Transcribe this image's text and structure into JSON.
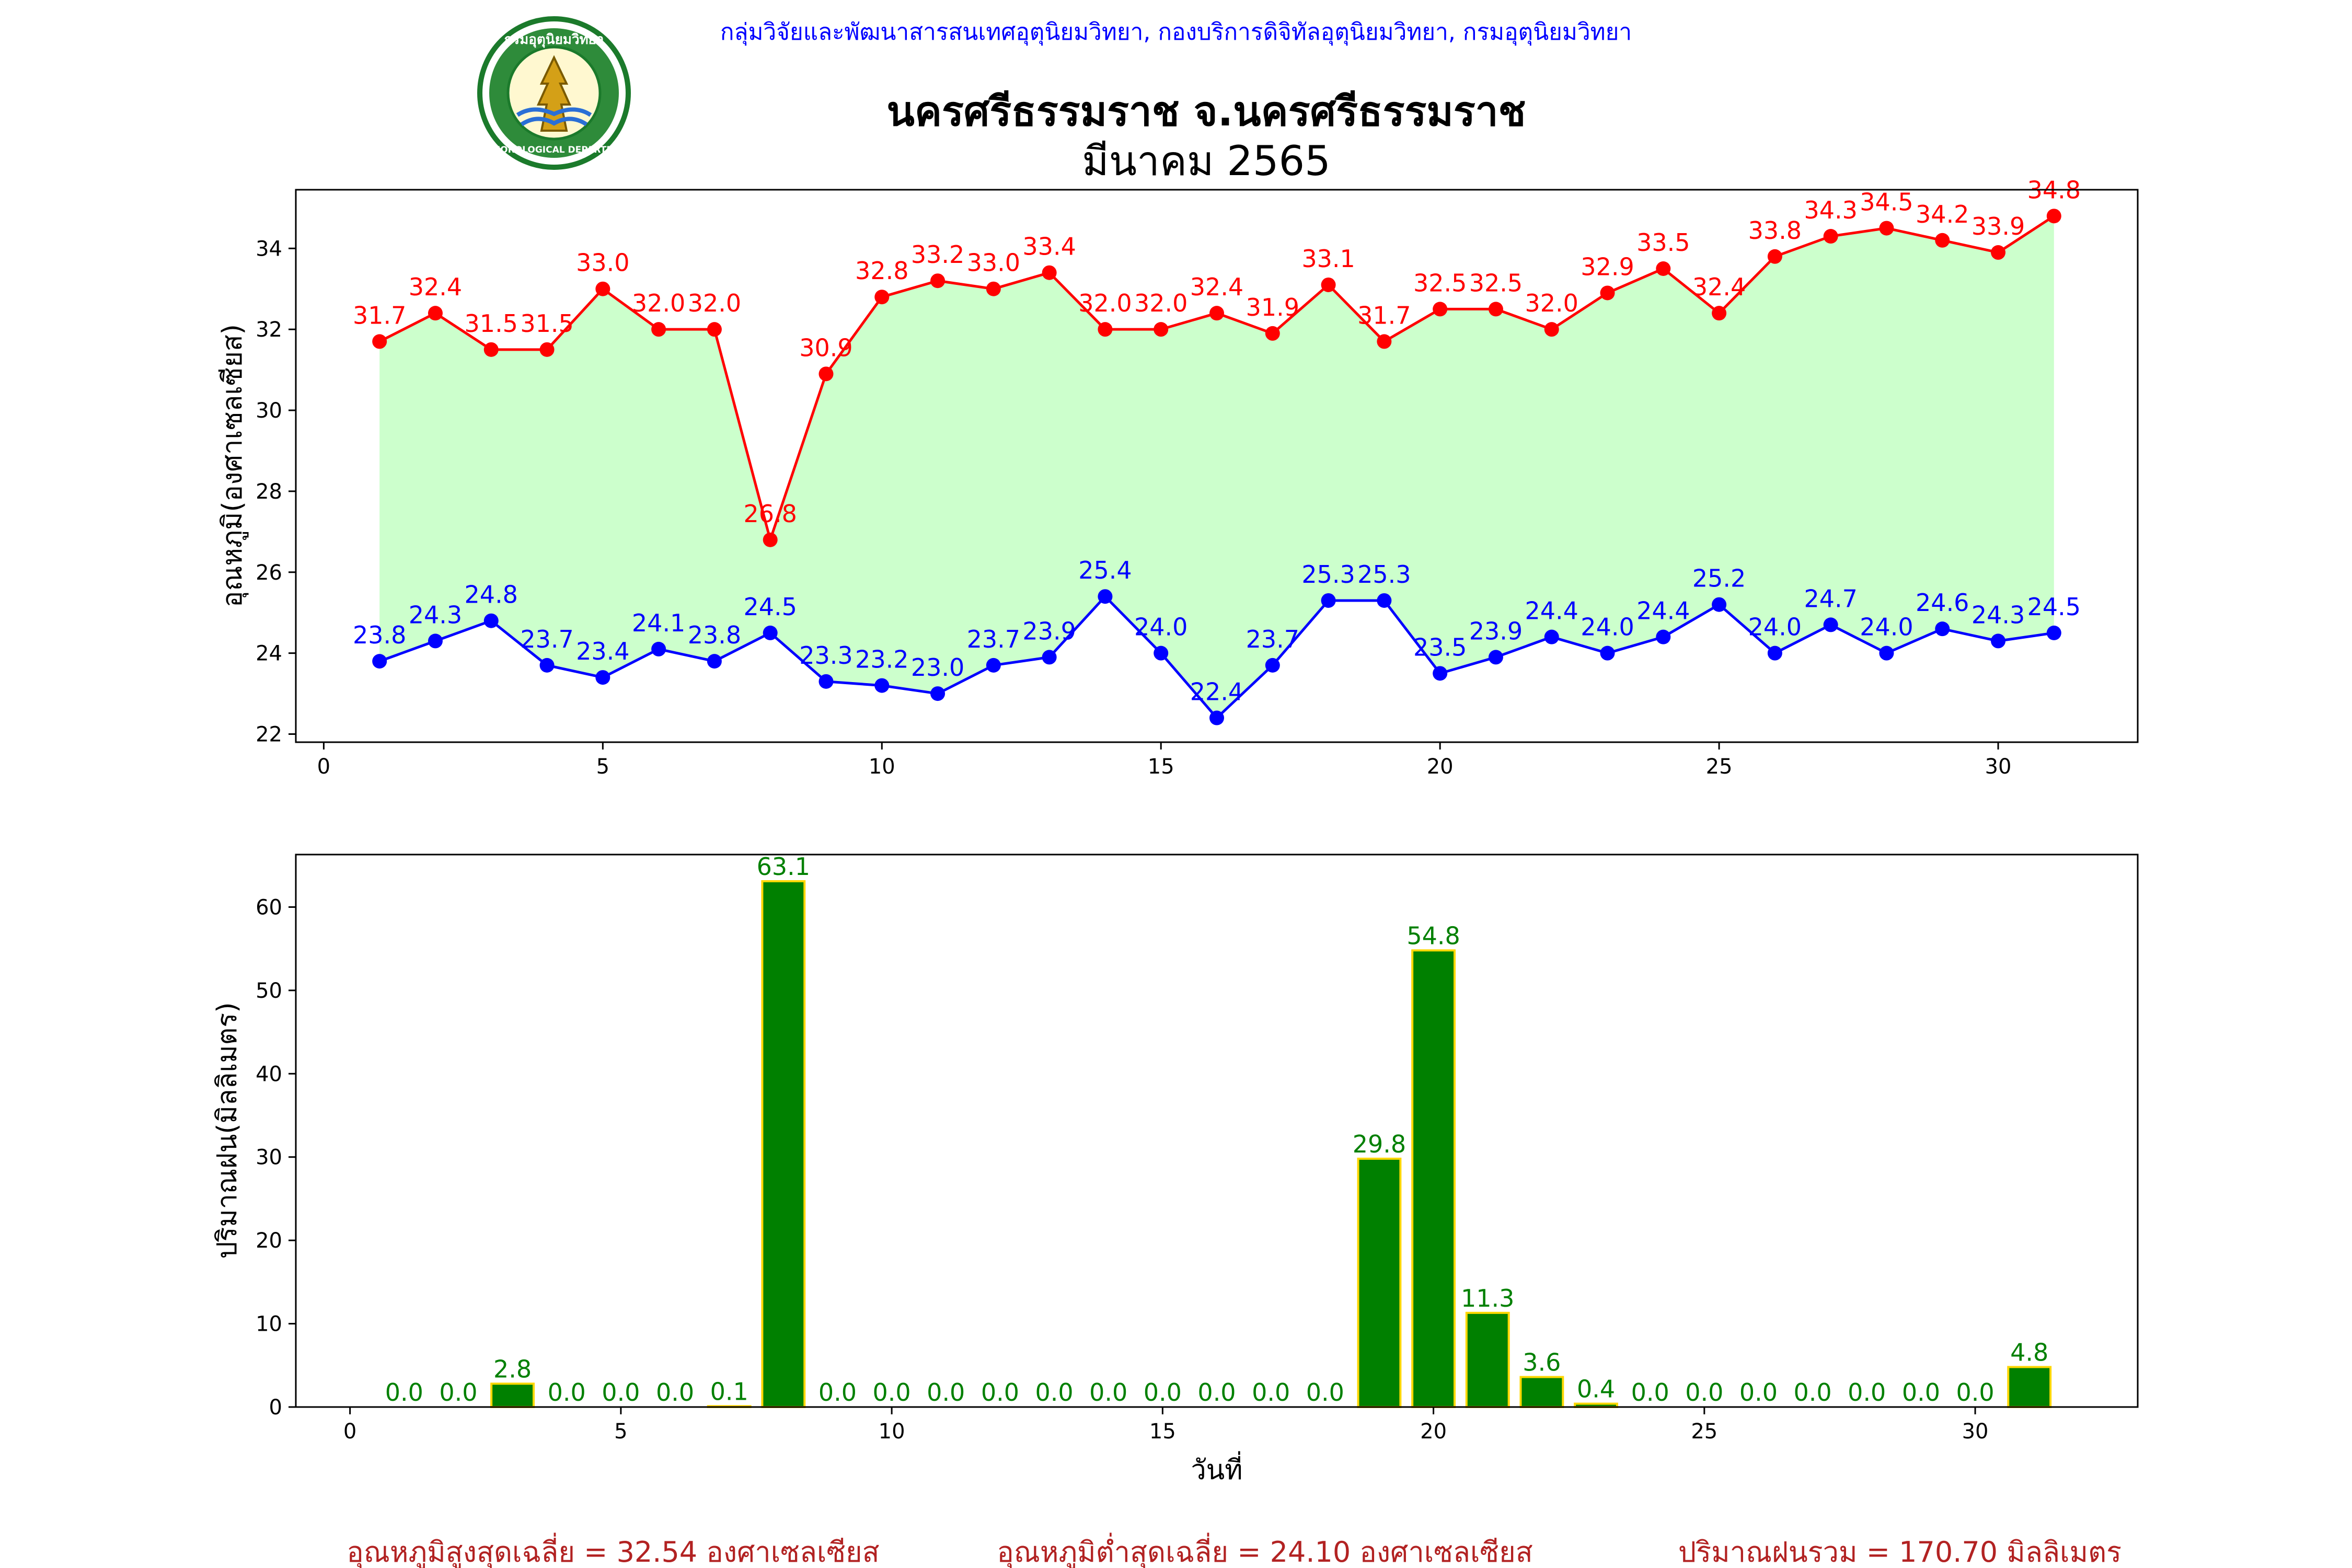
{
  "header": {
    "agency_line": "กลุ่มวิจัยและพัฒนาสารสนเทศอุตุนิยมวิทยา, กองบริการดิจิทัลอุตุนิยมวิทยา, กรมอุตุนิยมวิทยา",
    "station_title": "นครศรีธรรมราช จ.นครศรีธรรมราช",
    "month_title": "มีนาคม 2565",
    "logo": {
      "icon": "tmd-logo-icon",
      "ring_text_top": "กรมอุตุนิยมวิทยา",
      "ring_text_bottom": "METEOROLOGICAL DEPARTMENT"
    }
  },
  "colors": {
    "agency_text": "#0000ff",
    "max_line": "#ff0000",
    "min_line": "#0000ff",
    "band_fill": "#ccffcc",
    "bar_fill": "#008000",
    "bar_edge": "#ffd700",
    "rain_label": "#008000",
    "summary_text": "#b22222"
  },
  "chart_data": [
    {
      "type": "line",
      "ylabel": "อุณหภูมิ(องศาเซลเซียส)",
      "xlabel": "",
      "xlim": [
        -0.5,
        32.5
      ],
      "ylim": [
        21.8,
        35.45
      ],
      "xticks": [
        0,
        5,
        10,
        15,
        20,
        25,
        30
      ],
      "yticks": [
        22,
        24,
        26,
        28,
        30,
        32,
        34
      ],
      "grid": false,
      "fill_between_series": true,
      "x": [
        1,
        2,
        3,
        4,
        5,
        6,
        7,
        8,
        9,
        10,
        11,
        12,
        13,
        14,
        15,
        16,
        17,
        18,
        19,
        20,
        21,
        22,
        23,
        24,
        25,
        26,
        27,
        28,
        29,
        30,
        31
      ],
      "series": [
        {
          "key": "max",
          "values": [
            31.7,
            32.4,
            31.5,
            31.5,
            33.0,
            32.0,
            32.0,
            26.8,
            30.9,
            32.8,
            33.2,
            33.0,
            33.4,
            32.0,
            32.0,
            32.4,
            31.9,
            33.1,
            31.7,
            32.5,
            32.5,
            32.0,
            32.9,
            33.5,
            32.4,
            33.8,
            34.3,
            34.5,
            34.2,
            33.9,
            34.8
          ],
          "labels": [
            "31.7",
            "32.4",
            "31.5",
            "31.5",
            "33.0",
            "32.0",
            "32.0",
            "26.8",
            "30.9",
            "32.8",
            "33.2",
            "33.0",
            "33.4",
            "32.0",
            "32.0",
            "32.4",
            "31.9",
            "33.1",
            "31.7",
            "32.5",
            "32.5",
            "32.0",
            "32.9",
            "33.5",
            "32.4",
            "33.8",
            "34.3",
            "34.5",
            "34.2",
            "33.9",
            "34.8"
          ]
        },
        {
          "key": "min",
          "values": [
            23.8,
            24.3,
            24.8,
            23.7,
            23.4,
            24.1,
            23.8,
            24.5,
            23.3,
            23.2,
            23.0,
            23.7,
            23.9,
            25.4,
            24.0,
            22.4,
            23.7,
            25.3,
            25.3,
            23.5,
            23.9,
            24.4,
            24.0,
            24.4,
            25.2,
            24.0,
            24.7,
            24.0,
            24.6,
            24.3,
            24.5
          ],
          "labels": [
            "23.8",
            "24.3",
            "24.8",
            "23.7",
            "23.4",
            "24.1",
            "23.8",
            "24.5",
            "23.3",
            "23.2",
            "23.0",
            "23.7",
            "23.9",
            "25.4",
            "24.0",
            "22.4",
            "23.7",
            "25.3",
            "25.3",
            "23.5",
            "23.9",
            "24.4",
            "24.0",
            "24.4",
            "25.2",
            "24.0",
            "24.7",
            "24.0",
            "24.6",
            "24.3",
            "24.5"
          ]
        }
      ]
    },
    {
      "type": "bar",
      "ylabel": "ปริมาณฝน(มิลลิเมตร)",
      "xlabel": "วันที่",
      "xlim": [
        -1,
        33
      ],
      "ylim": [
        0,
        66.3
      ],
      "xticks": [
        0,
        5,
        10,
        15,
        20,
        25,
        30
      ],
      "yticks": [
        0,
        10,
        20,
        30,
        40,
        50,
        60
      ],
      "grid": false,
      "x": [
        1,
        2,
        3,
        4,
        5,
        6,
        7,
        8,
        9,
        10,
        11,
        12,
        13,
        14,
        15,
        16,
        17,
        18,
        19,
        20,
        21,
        22,
        23,
        24,
        25,
        26,
        27,
        28,
        29,
        30,
        31
      ],
      "values": [
        0.0,
        0.0,
        2.8,
        0.0,
        0.0,
        0.0,
        0.1,
        63.1,
        0.0,
        0.0,
        0.0,
        0.0,
        0.0,
        0.0,
        0.0,
        0.0,
        0.0,
        0.0,
        29.8,
        54.8,
        11.3,
        3.6,
        0.4,
        0.0,
        0.0,
        0.0,
        0.0,
        0.0,
        0.0,
        0.0,
        4.8
      ],
      "labels": [
        "0.0",
        "0.0",
        "2.8",
        "0.0",
        "0.0",
        "0.0",
        "0.1",
        "63.1",
        "0.0",
        "0.0",
        "0.0",
        "0.0",
        "0.0",
        "0.0",
        "0.0",
        "0.0",
        "0.0",
        "0.0",
        "29.8",
        "54.8",
        "11.3",
        "3.6",
        "0.4",
        "0.0",
        "0.0",
        "0.0",
        "0.0",
        "0.0",
        "0.0",
        "0.0",
        "4.8"
      ]
    }
  ],
  "summary": {
    "avg_max": "อุณหภูมิสูงสุดเฉลี่ย = 32.54 องศาเซลเซียส",
    "avg_min": "อุณหภูมิต่ำสุดเฉลี่ย = 24.10 องศาเซลเซียส",
    "total_rain": "ปริมาณฝนรวม = 170.70 มิลลิเมตร"
  }
}
